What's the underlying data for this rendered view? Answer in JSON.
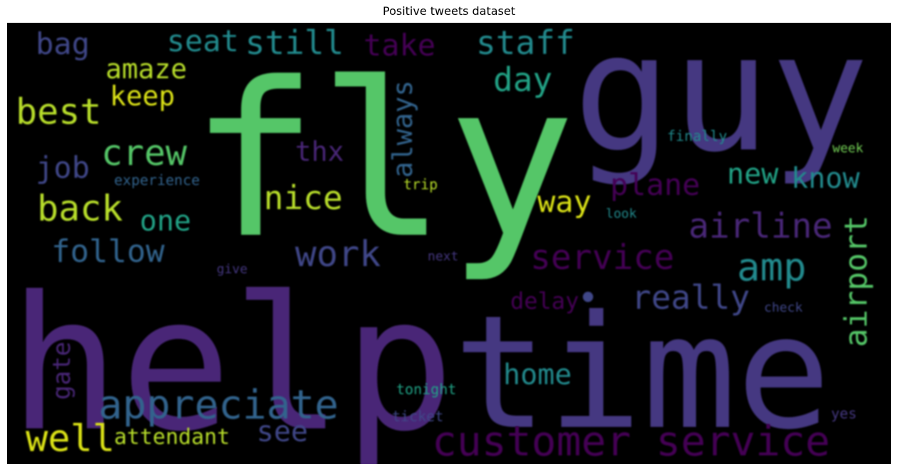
{
  "title": "Positive tweets dataset",
  "words": {
    "fly": "fly",
    "help": "help",
    "guy": "guy",
    "time": "time",
    "customer_service": "customer service",
    "appreciate": "appreciate",
    "service": "service",
    "airline": "airline",
    "work": "work",
    "amp": "amp",
    "really": "really",
    "airport": "airport",
    "plane": "plane",
    "nice": "nice",
    "crew": "crew",
    "best": "best",
    "back": "back",
    "follow": "follow",
    "well": "well",
    "still": "still",
    "staff": "staff",
    "seat": "seat",
    "take": "take",
    "amaze": "amaze",
    "keep": "keep",
    "day": "day",
    "bag": "bag",
    "job": "job",
    "always": "always",
    "thx": "thx",
    "new": "new",
    "know": "know",
    "way": "way",
    "one": "one",
    "home": "home",
    "see": "see",
    "attendant": "attendant",
    "gate": "gate",
    "delay": "delay",
    "experience": "experience",
    "trip": "trip",
    "finally": "finally",
    "week": "week",
    "look": "look",
    "next": "next",
    "give": "give",
    "check": "check",
    "tonight": "tonight",
    "ticket": "ticket",
    "yes": "yes",
    "dot": "•"
  },
  "colors": {
    "background": "#000000",
    "green": "#55c667",
    "purple": "#482677",
    "deep_purple": "#440154",
    "violet": "#453781",
    "indigo": "#3f4788",
    "blue": "#33638d",
    "teal": "#238a8d",
    "sea": "#20a386",
    "lime": "#73d055",
    "yellow_green": "#b8de29",
    "yellow": "#dce319"
  }
}
